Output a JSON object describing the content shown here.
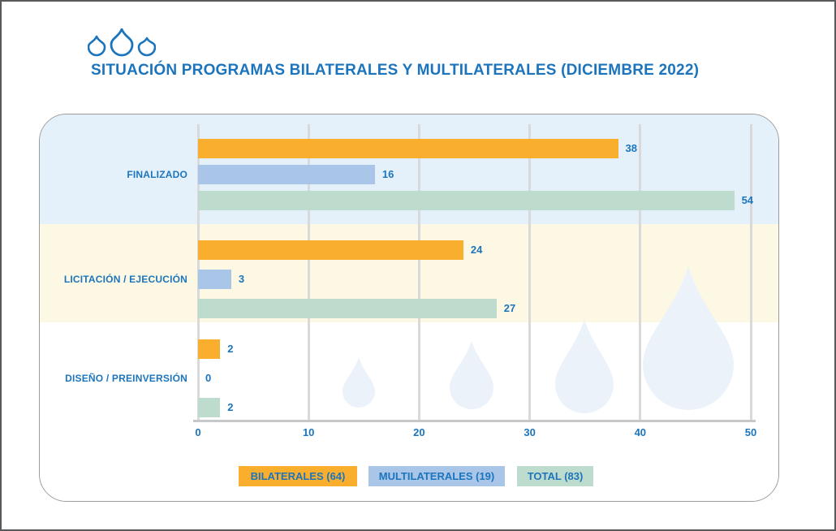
{
  "header": {
    "title": "SITUACIÓN PROGRAMAS BILATERALES Y MULTILATERALES (DICIEMBRE 2022)",
    "logo": "three-water-drops"
  },
  "chart_data": {
    "type": "bar",
    "orientation": "horizontal",
    "title": "SITUACIÓN PROGRAMAS BILATERALES Y MULTILATERALES (DICIEMBRE 2022)",
    "categories": [
      "FINALIZADO",
      "LICITACIÓN / EJECUCIÓN",
      "DISEÑO / PREINVERSIÓN"
    ],
    "series": [
      {
        "name": "BILATERALES (64)",
        "color": "#FAAE2D",
        "values": [
          38,
          24,
          2
        ]
      },
      {
        "name": "MULTILATERALES (19)",
        "color": "#A9C5E8",
        "values": [
          16,
          3,
          0
        ]
      },
      {
        "name": "TOTAL (83)",
        "color": "#BEDCCD",
        "values": [
          54,
          27,
          2
        ]
      }
    ],
    "x_ticks": [
      "0",
      "10",
      "20",
      "30",
      "40",
      "50"
    ],
    "xlim": [
      0,
      50
    ],
    "grid": true,
    "value_labels": true,
    "legend_position": "bottom",
    "category_band_colors": [
      "#E5F1FA",
      "#FDF8E4",
      "#FFFFFF"
    ]
  },
  "legend": {
    "items": [
      {
        "label": "BILATERALES (64)",
        "color": "#FAAE2D"
      },
      {
        "label": "MULTILATERALES (19)",
        "color": "#A9C5E8"
      },
      {
        "label": "TOTAL (83)",
        "color": "#BEDCCD"
      }
    ]
  },
  "colors": {
    "brand_blue": "#1C75BC",
    "band_finalizado": "#E5F1FA",
    "band_licitacion": "#FDF8E4",
    "band_diseno": "#FFFFFF",
    "watermark_drop": "#EBF2F9",
    "gridline": "#D9D9D9",
    "axis_line": "#C7C8CA",
    "panel_border": "#9B9B9B",
    "outer_border": "#58595B"
  }
}
